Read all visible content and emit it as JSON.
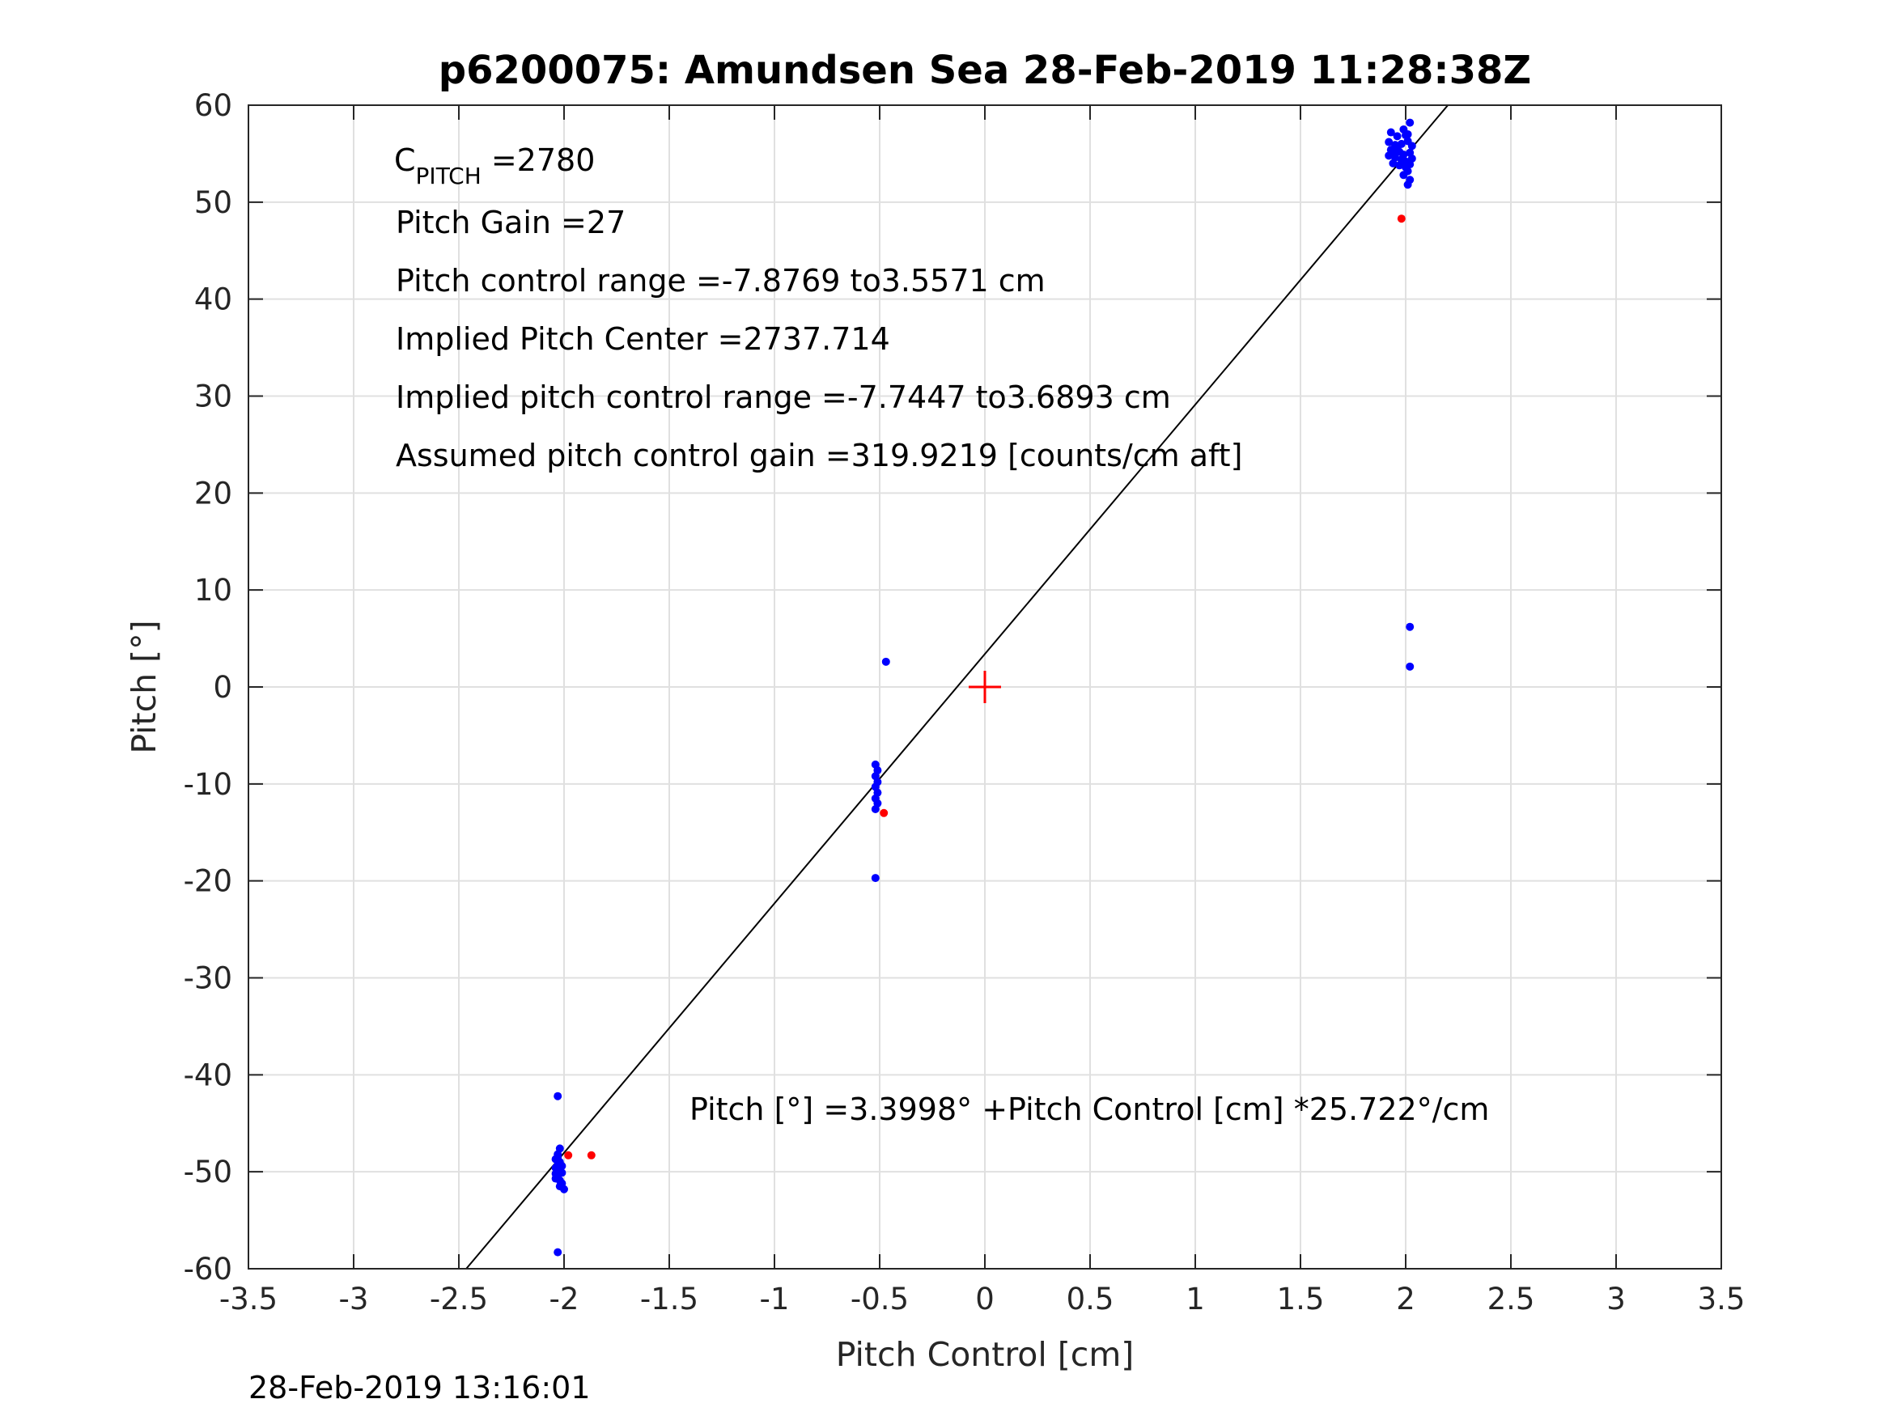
{
  "footer_timestamp": "28-Feb-2019 13:16:01",
  "chart_data": {
    "type": "scatter",
    "title": "p6200075: Amundsen Sea 28-Feb-2019 11:28:38Z",
    "xlabel": "Pitch Control [cm]",
    "ylabel": "Pitch [°]",
    "xlim": [
      -3.5,
      3.5
    ],
    "ylim": [
      -60,
      60
    ],
    "xticks": [
      -3.5,
      -3,
      -2.5,
      -2,
      -1.5,
      -1,
      -0.5,
      0,
      0.5,
      1,
      1.5,
      2,
      2.5,
      3,
      3.5
    ],
    "xtick_labels": [
      "-3.5",
      "-3",
      "-2.5",
      "-2",
      "-1.5",
      "-1",
      "-0.5",
      "0",
      "0.5",
      "1",
      "1.5",
      "2",
      "2.5",
      "3",
      "3.5"
    ],
    "yticks": [
      -60,
      -50,
      -40,
      -30,
      -20,
      -10,
      0,
      10,
      20,
      30,
      40,
      50,
      60
    ],
    "ytick_labels": [
      "-60",
      "-50",
      "-40",
      "-30",
      "-20",
      "-10",
      "0",
      "10",
      "20",
      "30",
      "40",
      "50",
      "60"
    ],
    "grid": true,
    "colors": {
      "blue_points": "#0000ff",
      "red_points": "#ff0000",
      "fit_line": "#000000",
      "center_marker": "#ff0000",
      "grid": "#e0e0e0",
      "axes": "#262626"
    },
    "fit_line": {
      "intercept": 3.3998,
      "slope": 25.722
    },
    "center_marker": {
      "x": 0,
      "y": 0,
      "marker": "+"
    },
    "series": [
      {
        "color": "blue",
        "points": [
          [
            -2.03,
            -42.2
          ],
          [
            -2.02,
            -47.6
          ],
          [
            -2.03,
            -48.2
          ],
          [
            -2.04,
            -48.7
          ],
          [
            -2.02,
            -49.0
          ],
          [
            -2.03,
            -49.3
          ],
          [
            -2.04,
            -49.6
          ],
          [
            -2.02,
            -49.9
          ],
          [
            -2.01,
            -50.1
          ],
          [
            -2.03,
            -50.4
          ],
          [
            -2.04,
            -50.7
          ],
          [
            -2.02,
            -50.9
          ],
          [
            -2.01,
            -51.2
          ],
          [
            -2.02,
            -51.5
          ],
          [
            -2.0,
            -51.8
          ],
          [
            -2.03,
            -48.5
          ],
          [
            -2.01,
            -49.4
          ],
          [
            -2.04,
            -50.2
          ],
          [
            -2.03,
            -58.3
          ],
          [
            -0.52,
            -8.0
          ],
          [
            -0.51,
            -8.6
          ],
          [
            -0.52,
            -9.2
          ],
          [
            -0.51,
            -9.8
          ],
          [
            -0.52,
            -10.3
          ],
          [
            -0.51,
            -10.9
          ],
          [
            -0.52,
            -11.5
          ],
          [
            -0.51,
            -12.0
          ],
          [
            -0.52,
            -12.6
          ],
          [
            -0.52,
            -19.7
          ],
          [
            -0.47,
            2.6
          ],
          [
            1.93,
            57.2
          ],
          [
            1.96,
            56.8
          ],
          [
            1.99,
            57.5
          ],
          [
            2.02,
            58.2
          ],
          [
            2.01,
            57.0
          ],
          [
            1.92,
            56.2
          ],
          [
            1.95,
            55.9
          ],
          [
            1.98,
            56.0
          ],
          [
            2.01,
            56.3
          ],
          [
            2.03,
            55.8
          ],
          [
            1.93,
            55.4
          ],
          [
            1.94,
            55.0
          ],
          [
            1.97,
            55.2
          ],
          [
            1.99,
            54.9
          ],
          [
            2.02,
            55.1
          ],
          [
            1.92,
            54.8
          ],
          [
            1.95,
            54.6
          ],
          [
            1.98,
            54.4
          ],
          [
            2.0,
            54.2
          ],
          [
            2.03,
            54.5
          ],
          [
            1.94,
            54.0
          ],
          [
            1.97,
            53.8
          ],
          [
            2.0,
            53.6
          ],
          [
            2.02,
            53.9
          ],
          [
            2.01,
            53.2
          ],
          [
            1.99,
            52.8
          ],
          [
            2.02,
            52.3
          ],
          [
            2.01,
            51.8
          ],
          [
            1.96,
            55.6
          ],
          [
            2.0,
            56.9
          ],
          [
            2.02,
            6.2
          ],
          [
            2.02,
            2.1
          ]
        ]
      },
      {
        "color": "red",
        "points": [
          [
            -1.98,
            -48.3
          ],
          [
            -1.87,
            -48.3
          ],
          [
            -0.48,
            -13.0
          ],
          [
            1.98,
            48.3
          ]
        ]
      }
    ],
    "annotations": [
      {
        "text": "Pitch Gain =27"
      },
      {
        "text": "Pitch control range =-7.8769 to3.5571 cm"
      },
      {
        "text": "Implied Pitch Center =2737.714"
      },
      {
        "text": "Implied pitch control range =-7.7447 to3.6893 cm"
      },
      {
        "text": "Assumed pitch control gain =319.9219 [counts/cm aft]"
      },
      {
        "text": "Pitch [°] =3.3998° +Pitch Control [cm] *25.722°/cm"
      }
    ],
    "cpitch": {
      "main": "C",
      "subscript": "PITCH",
      "value": " =2780"
    }
  }
}
